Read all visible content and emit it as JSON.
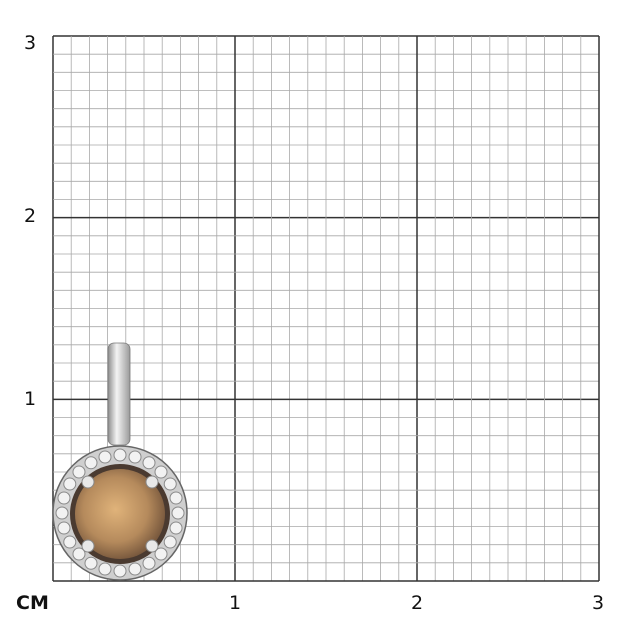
{
  "scale": {
    "unit_label": "CM",
    "y_labels": [
      "3",
      "2",
      "1"
    ],
    "x_labels": [
      "1",
      "2",
      "3"
    ],
    "range_cm": [
      0,
      3
    ],
    "minor_divisions_per_cm": 10
  },
  "product": {
    "type": "pendant",
    "center_stone_color": "#b58a5c",
    "metal_color": "#d9d9d9"
  }
}
